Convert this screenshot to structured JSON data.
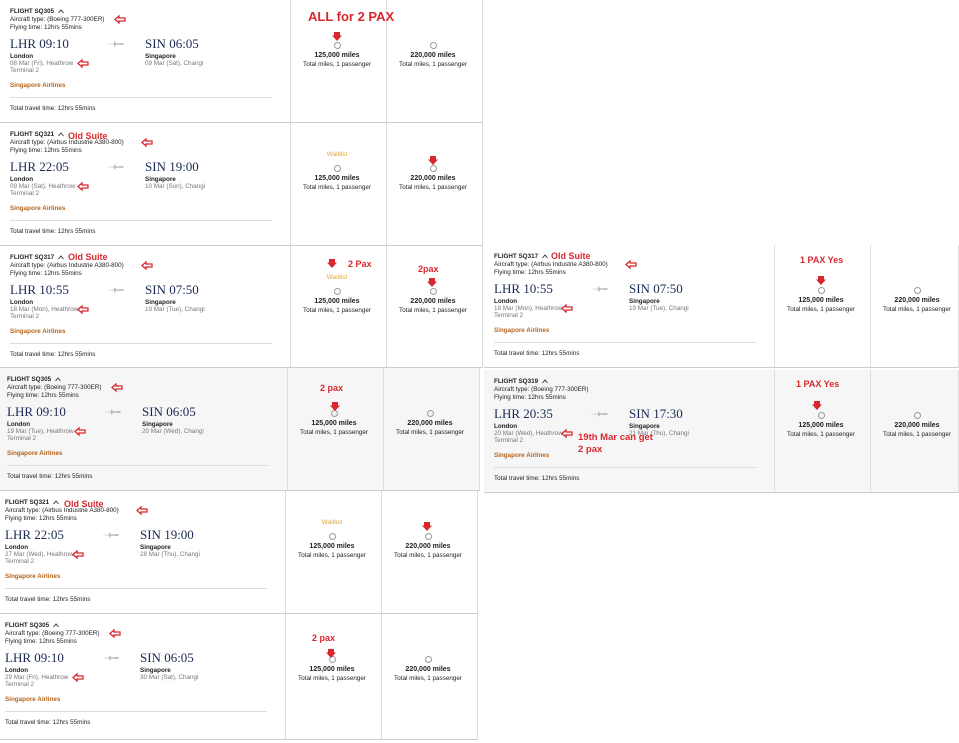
{
  "cards": [
    {
      "flight": "FLIGHT SQ305",
      "aircraft": "Aircraft type: (Boeing 777-300ER)",
      "flying_time": "Flying time: 12hrs 55mins",
      "departure": {
        "time": "LHR 09:10",
        "city": "London",
        "date": "08 Mar (Fri), Heathrow",
        "terminal": "Terminal 2"
      },
      "arrival": {
        "time": "SIN 06:05",
        "city": "Singapore",
        "date": "09 Mar (Sat), Changi"
      },
      "airline": "Singapore Airlines",
      "total_time": "Total travel time: 12hrs 55mins",
      "options": [
        {
          "miles": "125,000 miles",
          "note": "Total miles, 1 passenger"
        },
        {
          "miles": "220,000 miles",
          "note": "Total miles, 1 passenger"
        }
      ],
      "annotations": [
        "ALL for 2 PAX"
      ]
    },
    {
      "flight": "FLIGHT SQ321",
      "aircraft": "Aircraft type: (Airbus Industrie A380-800)",
      "flying_time": "Flying time: 12hrs 55mins",
      "departure": {
        "time": "LHR 22:05",
        "city": "London",
        "date": "09 Mar (Sat), Heathrow",
        "terminal": "Terminal 2"
      },
      "arrival": {
        "time": "SIN 19:00",
        "city": "Singapore",
        "date": "10 Mar (Sun), Changi"
      },
      "airline": "Singapore Airlines",
      "total_time": "Total travel time: 12hrs 55mins",
      "options": [
        {
          "status": "Waitlist",
          "miles": "125,000 miles",
          "note": "Total miles, 1 passenger"
        },
        {
          "miles": "220,000 miles",
          "note": "Total miles, 1 passenger"
        }
      ],
      "annotations": [
        "Old Suite"
      ]
    },
    {
      "flight": "FLIGHT SQ317",
      "aircraft": "Aircraft type: (Airbus Industrie A380-800)",
      "flying_time": "Flying time: 12hrs 55mins",
      "departure": {
        "time": "LHR 10:55",
        "city": "London",
        "date": "18 Mar (Mon), Heathrow",
        "terminal": "Terminal 2"
      },
      "arrival": {
        "time": "SIN 07:50",
        "city": "Singapore",
        "date": "19 Mar (Tue), Changi"
      },
      "airline": "Singapore Airlines",
      "total_time": "Total travel time: 12hrs 55mins",
      "options": [
        {
          "status": "Waitlist",
          "miles": "125,000 miles",
          "note": "Total miles, 1 passenger"
        },
        {
          "miles": "220,000 miles",
          "note": "Total miles, 1 passenger"
        }
      ],
      "annotations": [
        "Old Suite",
        "2 Pax",
        "2pax"
      ]
    },
    {
      "flight": "FLIGHT SQ305",
      "aircraft": "Aircraft type: (Boeing 777-300ER)",
      "flying_time": "Flying time: 12hrs 55mins",
      "departure": {
        "time": "LHR 09:10",
        "city": "London",
        "date": "19 Mar (Tue), Heathrow",
        "terminal": "Terminal 2"
      },
      "arrival": {
        "time": "SIN 06:05",
        "city": "Singapore",
        "date": "20 Mar (Wed), Changi"
      },
      "airline": "Singapore Airlines",
      "total_time": "Total travel time: 12hrs 55mins",
      "options": [
        {
          "miles": "125,000 miles",
          "note": "Total miles, 1 passenger"
        },
        {
          "miles": "220,000 miles",
          "note": "Total miles, 1 passenger"
        }
      ],
      "annotations": [
        "2 pax"
      ]
    },
    {
      "flight": "FLIGHT SQ321",
      "aircraft": "Aircraft type: (Airbus Industrie A380-800)",
      "flying_time": "Flying time: 12hrs 55mins",
      "departure": {
        "time": "LHR 22:05",
        "city": "London",
        "date": "27 Mar (Wed), Heathrow",
        "terminal": "Terminal 2"
      },
      "arrival": {
        "time": "SIN 19:00",
        "city": "Singapore",
        "date": "28 Mar (Thu), Changi"
      },
      "airline": "Singapore Airlines",
      "total_time": "Total travel time: 12hrs 55mins",
      "options": [
        {
          "status": "Waitlist",
          "miles": "125,000 miles",
          "note": "Total miles, 1 passenger"
        },
        {
          "miles": "220,000 miles",
          "note": "Total miles, 1 passenger"
        }
      ],
      "annotations": [
        "Old Suite"
      ]
    },
    {
      "flight": "FLIGHT SQ305",
      "aircraft": "Aircraft type: (Boeing 777-300ER)",
      "flying_time": "Flying time: 12hrs 55mins",
      "departure": {
        "time": "LHR 09:10",
        "city": "London",
        "date": "29 Mar (Fri), Heathrow",
        "terminal": "Terminal 2"
      },
      "arrival": {
        "time": "SIN 06:05",
        "city": "Singapore",
        "date": "30 Mar (Sat), Changi"
      },
      "airline": "Singapore Airlines",
      "total_time": "Total travel time: 12hrs 55mins",
      "options": [
        {
          "miles": "125,000 miles",
          "note": "Total miles, 1 passenger"
        },
        {
          "miles": "220,000 miles",
          "note": "Total miles, 1 passenger"
        }
      ],
      "annotations": [
        "2 pax"
      ]
    },
    {
      "flight": "FLIGHT SQ317",
      "aircraft": "Aircraft type: (Airbus Industrie A380-800)",
      "flying_time": "Flying time: 12hrs 55mins",
      "departure": {
        "time": "LHR 10:55",
        "city": "London",
        "date": "18 Mar (Mon), Heathrow",
        "terminal": "Terminal 2"
      },
      "arrival": {
        "time": "SIN 07:50",
        "city": "Singapore",
        "date": "19 Mar (Tue), Changi"
      },
      "airline": "Singapore Airlines",
      "total_time": "Total travel time: 12hrs 55mins",
      "options": [
        {
          "miles": "125,000 miles",
          "note": "Total miles, 1 passenger"
        },
        {
          "miles": "220,000 miles",
          "note": "Total miles, 1 passenger"
        }
      ],
      "annotations": [
        "Old Suite",
        "1 PAX Yes"
      ]
    },
    {
      "flight": "FLIGHT SQ319",
      "aircraft": "Aircraft type: (Boeing 777-300ER)",
      "flying_time": "Flying time: 12hrs 55mins",
      "departure": {
        "time": "LHR 20:35",
        "city": "London",
        "date": "20 Mar (Wed), Heathrow",
        "terminal": "Terminal 2"
      },
      "arrival": {
        "time": "SIN 17:30",
        "city": "Singapore",
        "date": "21 Mar (Thu), Changi"
      },
      "airline": "Singapore Airlines",
      "total_time": "Total travel time: 12hrs 55mins",
      "options": [
        {
          "miles": "125,000 miles",
          "note": "Total miles, 1 passenger"
        },
        {
          "miles": "220,000 miles",
          "note": "Total miles, 1 passenger"
        }
      ],
      "annotations": [
        "1 PAX Yes",
        "19th Mar can get 2 pax"
      ]
    }
  ]
}
